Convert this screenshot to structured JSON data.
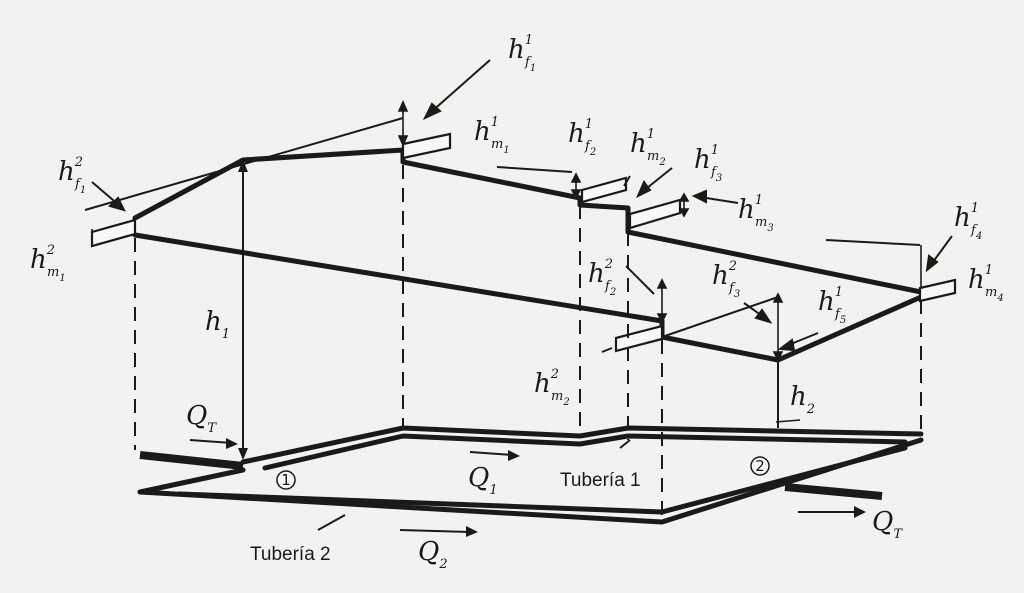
{
  "labels": {
    "hf1_1": {
      "base": "h",
      "sub": "f",
      "subsub": "1",
      "sup": "1"
    },
    "hf1_2": {
      "base": "h",
      "sub": "f",
      "subsub": "1",
      "sup": "2"
    },
    "hm1_2": {
      "base": "h",
      "sub": "m",
      "subsub": "1",
      "sup": "2"
    },
    "hm1_1": {
      "base": "h",
      "sub": "m",
      "subsub": "1",
      "sup": "1"
    },
    "hf2_1": {
      "base": "h",
      "sub": "f",
      "subsub": "2",
      "sup": "1"
    },
    "hm2_1": {
      "base": "h",
      "sub": "m",
      "subsub": "2",
      "sup": "1"
    },
    "hf3_1": {
      "base": "h",
      "sub": "f",
      "subsub": "3",
      "sup": "1"
    },
    "hm3_1": {
      "base": "h",
      "sub": "m",
      "subsub": "3",
      "sup": "1"
    },
    "hf4_1": {
      "base": "h",
      "sub": "f",
      "subsub": "4",
      "sup": "1"
    },
    "hm4_1": {
      "base": "h",
      "sub": "m",
      "subsub": "4",
      "sup": "1"
    },
    "hf2_2": {
      "base": "h",
      "sub": "f",
      "subsub": "2",
      "sup": "2"
    },
    "hf3_2": {
      "base": "h",
      "sub": "f",
      "subsub": "3",
      "sup": "2"
    },
    "hf5_1": {
      "base": "h",
      "sub": "f",
      "subsub": "5",
      "sup": "1"
    },
    "hm2_2": {
      "base": "h",
      "sub": "m",
      "subsub": "2",
      "sup": "2"
    },
    "h1": {
      "base": "h",
      "sub": "1"
    },
    "h2": {
      "base": "h",
      "sub": "2"
    },
    "qt_in": {
      "base": "Q",
      "sub": "T"
    },
    "qt_out": {
      "base": "Q",
      "sub": "T"
    },
    "q1": {
      "base": "Q",
      "sub": "1"
    },
    "q2": {
      "base": "Q",
      "sub": "2"
    }
  },
  "pipes": {
    "tuberia1": "Tubería 1",
    "tuberia2": "Tubería 2"
  },
  "nodes": {
    "node1": "1",
    "node2": "2"
  }
}
